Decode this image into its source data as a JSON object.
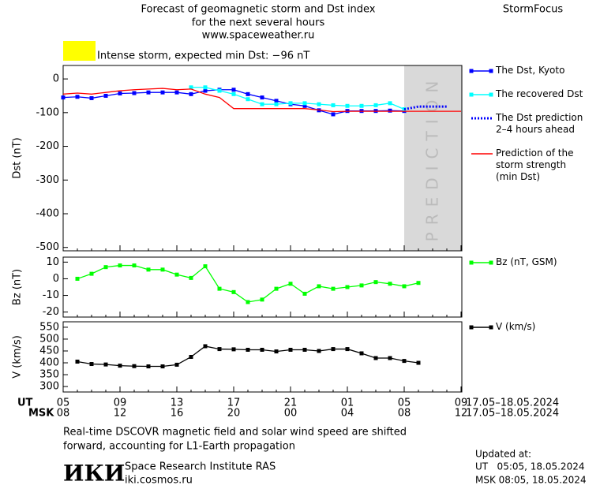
{
  "header": {
    "title_lines": [
      "Forecast of geomagnetic storm and Dst index",
      "for the next several hours",
      "www.spaceweather.ru"
    ],
    "brand": "StormFocus",
    "alert": "Intense storm, expected min Dst: −96 nT",
    "alert_color": "#ffff00"
  },
  "x_axis": {
    "ut_label": "UT",
    "msk_label": "MSK",
    "ut": [
      "05",
      null,
      null,
      null,
      "09",
      null,
      null,
      null,
      "13",
      null,
      null,
      null,
      "17",
      null,
      null,
      null,
      "21",
      null,
      null,
      null,
      "01",
      null,
      null,
      null,
      "05",
      null,
      null,
      null,
      "09"
    ],
    "msk": [
      "08",
      null,
      null,
      null,
      "12",
      null,
      null,
      null,
      "16",
      null,
      null,
      null,
      "20",
      null,
      null,
      null,
      "00",
      null,
      null,
      null,
      "04",
      null,
      null,
      null,
      "08",
      null,
      null,
      null,
      "12"
    ],
    "ut_dates": "17.05–18.05.2024",
    "msk_dates": "17.05–18.05.2024"
  },
  "chart_data": [
    {
      "type": "line",
      "ylabel": "Dst (nT)",
      "ylim": [
        -510,
        40
      ],
      "yticks": [
        0,
        -100,
        -200,
        -300,
        -400,
        -500
      ],
      "shade_label": "PREDICTION",
      "series": [
        {
          "name": "The Dst, Kyoto",
          "color": "#0000ff",
          "marker": "square",
          "values": [
            -55,
            -53,
            -57,
            -50,
            -43,
            -42,
            -40,
            -40,
            -40,
            -45,
            -35,
            -32,
            -32,
            -45,
            -55,
            -65,
            -75,
            -80,
            -93,
            -105,
            -95,
            -95,
            -95,
            -94,
            -95,
            null,
            null,
            null,
            null
          ]
        },
        {
          "name": "The recovered Dst",
          "color": "#00ffff",
          "marker": "square",
          "values": [
            null,
            null,
            null,
            null,
            null,
            null,
            null,
            null,
            null,
            -25,
            -25,
            -35,
            -45,
            -60,
            -75,
            -75,
            -72,
            -72,
            -75,
            -78,
            -80,
            -80,
            -78,
            -72,
            -90,
            null,
            null,
            null,
            null
          ]
        },
        {
          "name": "The Dst prediction\n2–4 hours ahead",
          "color": "#0000ff",
          "dashed": true,
          "values": [
            null,
            null,
            null,
            null,
            null,
            null,
            null,
            null,
            null,
            null,
            null,
            null,
            null,
            null,
            null,
            null,
            null,
            null,
            null,
            null,
            null,
            null,
            null,
            null,
            -90,
            -82,
            -82,
            -82,
            null
          ]
        },
        {
          "name": "Prediction of the\nstorm strength\n(min Dst)",
          "color": "#ff0000",
          "values": [
            -45,
            -42,
            -45,
            -40,
            -35,
            -32,
            -30,
            -28,
            -32,
            -30,
            -45,
            -55,
            -88,
            -88,
            -88,
            -88,
            -88,
            -88,
            -92,
            -97,
            -96,
            -96,
            -96,
            -96,
            -96,
            -96,
            -96,
            -96,
            -96
          ]
        }
      ]
    },
    {
      "type": "line",
      "ylabel": "Bz (nT)",
      "ylim": [
        -23,
        13
      ],
      "yticks": [
        10,
        0,
        -10,
        -20
      ],
      "series": [
        {
          "name": "Bz (nT, GSM)",
          "color": "#00ff00",
          "marker": "square",
          "values": [
            null,
            0,
            3,
            7,
            8,
            8,
            5.5,
            5.5,
            2.5,
            0.5,
            7.5,
            -6,
            -8,
            -14,
            -12.5,
            -6,
            -3,
            -9,
            -4.5,
            -6,
            -5,
            -4,
            -2,
            -3,
            -4.5,
            -2.5,
            null,
            null,
            null
          ]
        }
      ]
    },
    {
      "type": "line",
      "ylabel": "V (km/s)",
      "ylim": [
        277,
        573
      ],
      "yticks": [
        550,
        500,
        450,
        400,
        350,
        300
      ],
      "series": [
        {
          "name": "V (km/s)",
          "color": "#000000",
          "marker": "square",
          "values": [
            null,
            405,
            395,
            393,
            388,
            386,
            385,
            385,
            392,
            425,
            470,
            458,
            457,
            455,
            455,
            448,
            455,
            455,
            450,
            458,
            458,
            440,
            420,
            420,
            408,
            400,
            null,
            null,
            null
          ]
        }
      ]
    }
  ],
  "footer": {
    "note_lines": [
      "Real-time DSCOVR magnetic field and solar wind speed are shifted",
      "forward, accounting for L1-Earth propagation"
    ],
    "logo": "ИКИ",
    "institute": "Space Research Institute RAS",
    "site": "iki.cosmos.ru",
    "updated_label": "Updated at:",
    "updated_ut": "UT   05:05, 18.05.2024",
    "updated_msk": "MSK 08:05, 18.05.2024"
  }
}
